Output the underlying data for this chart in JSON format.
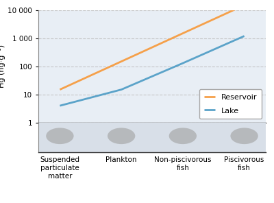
{
  "categories": [
    "Suspended\nparticulate\nmatter",
    "Plankton",
    "Non-piscivorous\nfish",
    "Piscivorous\nfish"
  ],
  "reservoir_values_log": [
    1.176,
    2.176,
    3.176,
    4.176
  ],
  "lake_values_log": [
    0.602,
    1.176,
    2.114,
    3.079
  ],
  "reservoir_color": "#F5A04A",
  "lake_color": "#5BA3C9",
  "plot_bg_color": "#E8EEF5",
  "lower_bg_color": "#D8DFE8",
  "ylabel": "Hg (ng·g⁻¹)",
  "ylim_log": [
    1,
    10000
  ],
  "yticks": [
    1,
    10,
    100,
    1000,
    10000
  ],
  "ytick_labels": [
    "1",
    "10",
    "100",
    "1 000",
    "10 000"
  ],
  "legend_labels": [
    "Reservoir",
    "Lake"
  ],
  "line_width": 2.0,
  "grid_color": "#BBBBBB",
  "grid_style": "--",
  "grid_alpha": 0.8,
  "label_fontsize": 8,
  "tick_fontsize": 7.5,
  "legend_fontsize": 8,
  "cat_tick_fontsize": 7.5
}
